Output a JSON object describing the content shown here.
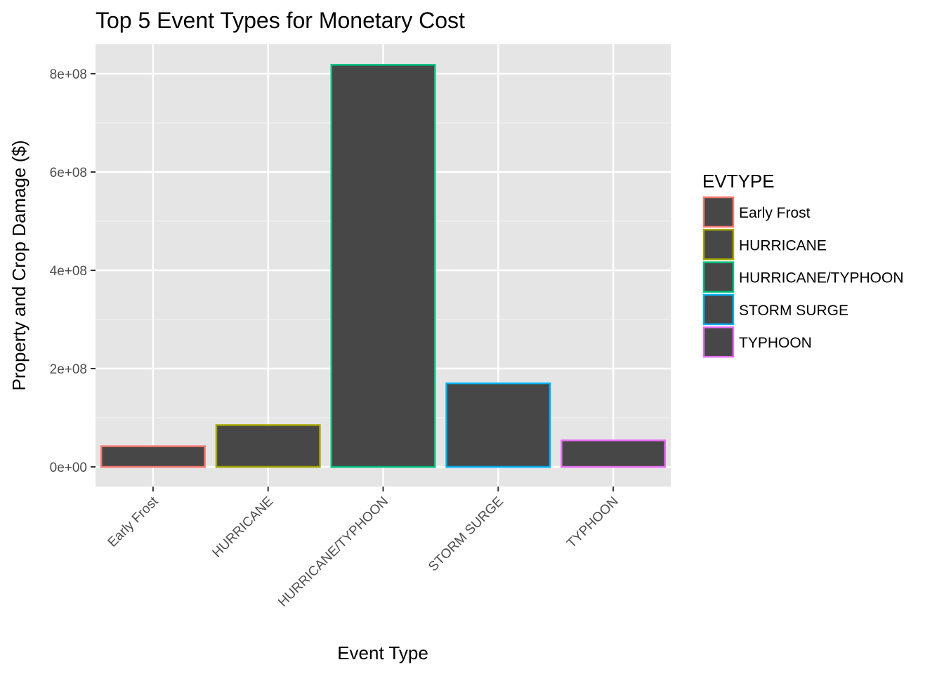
{
  "chart_data": {
    "type": "bar",
    "title": "Top 5 Event Types for Monetary Cost",
    "xlabel": "Event Type",
    "ylabel": "Property and Crop Damage ($)",
    "categories": [
      "Early Frost",
      "HURRICANE",
      "HURRICANE/TYPHOON",
      "STORM SURGE",
      "TYPHOON"
    ],
    "values": [
      42000000,
      85000000,
      818000000,
      170000000,
      54000000
    ],
    "ylim": [
      -40000000,
      860000000
    ],
    "yticks": [
      0,
      200000000,
      400000000,
      600000000,
      800000000
    ],
    "ytick_labels": [
      "0e+00",
      "2e+08",
      "4e+08",
      "6e+08",
      "8e+08"
    ],
    "bar_fill": "#474747",
    "border_colors": [
      "#F8766D",
      "#A3A500",
      "#00BF7D",
      "#00B0F6",
      "#E76BF3"
    ],
    "panel_background": "#E5E5E5",
    "grid": true,
    "legend": {
      "title": "EVTYPE",
      "placement": "right",
      "entries": [
        "Early Frost",
        "HURRICANE",
        "HURRICANE/TYPHOON",
        "STORM SURGE",
        "TYPHOON"
      ]
    }
  }
}
